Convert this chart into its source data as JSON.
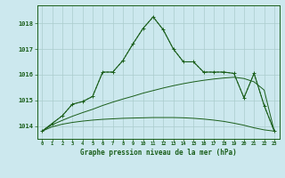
{
  "hours": [
    0,
    1,
    2,
    3,
    4,
    5,
    6,
    7,
    8,
    9,
    10,
    11,
    12,
    13,
    14,
    15,
    16,
    17,
    18,
    19,
    20,
    21,
    22,
    23
  ],
  "background_color": "#cce8ee",
  "grid_color": "#aacccc",
  "line_color": "#1a5e1a",
  "title": "Graphe pression niveau de la mer (hPa)",
  "ylim_min": 1013.5,
  "ylim_max": 1018.7,
  "yticks": [
    1014,
    1015,
    1016,
    1017,
    1018
  ],
  "line_main": [
    1013.8,
    1014.1,
    1014.4,
    1014.85,
    1014.95,
    1015.15,
    1016.1,
    1016.1,
    1016.55,
    1017.2,
    1017.8,
    1018.25,
    1017.75,
    1017.0,
    1016.5,
    1016.5,
    1016.1,
    1016.1,
    1016.1,
    1016.05,
    1015.1,
    1016.05,
    1014.8,
    1013.8
  ],
  "line_flat1": [
    1013.8,
    1014.05,
    1014.22,
    1014.38,
    1014.52,
    1014.65,
    1014.8,
    1014.93,
    1015.05,
    1015.16,
    1015.28,
    1015.38,
    1015.48,
    1015.57,
    1015.65,
    1015.72,
    1015.78,
    1015.83,
    1015.87,
    1015.9,
    1015.85,
    1015.72,
    1015.4,
    1013.8
  ],
  "line_flat2": [
    1013.8,
    1013.97,
    1014.07,
    1014.14,
    1014.19,
    1014.23,
    1014.26,
    1014.28,
    1014.3,
    1014.31,
    1014.32,
    1014.33,
    1014.33,
    1014.33,
    1014.32,
    1014.3,
    1014.27,
    1014.23,
    1014.18,
    1014.11,
    1014.03,
    1013.93,
    1013.85,
    1013.8
  ]
}
